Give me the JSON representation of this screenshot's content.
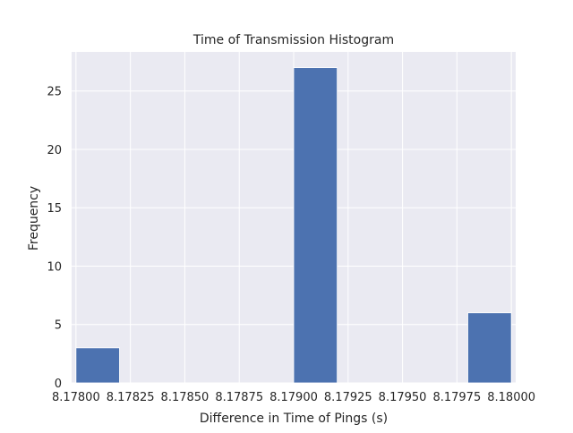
{
  "chart_data": {
    "type": "bar",
    "title": "Time of Transmission Histogram",
    "xlabel": "Difference in Time of Pings (s)",
    "ylabel": "Frequency",
    "xlim": [
      8.17798,
      8.18002
    ],
    "ylim": [
      0,
      28.35
    ],
    "xticks": [
      8.178,
      8.17825,
      8.1785,
      8.17875,
      8.179,
      8.17925,
      8.1795,
      8.17975,
      8.18
    ],
    "xtick_labels": [
      "8.17800",
      "8.17825",
      "8.17850",
      "8.17875",
      "8.17900",
      "8.17925",
      "8.17950",
      "8.17975",
      "8.18000"
    ],
    "yticks": [
      0,
      5,
      10,
      15,
      20,
      25
    ],
    "ytick_labels": [
      "0",
      "5",
      "10",
      "15",
      "20",
      "25"
    ],
    "bins": [
      {
        "start": 8.178,
        "end": 8.1782,
        "count": 3
      },
      {
        "start": 8.1782,
        "end": 8.1784,
        "count": 0
      },
      {
        "start": 8.1784,
        "end": 8.1786,
        "count": 0
      },
      {
        "start": 8.1786,
        "end": 8.1788,
        "count": 0
      },
      {
        "start": 8.1788,
        "end": 8.179,
        "count": 0
      },
      {
        "start": 8.179,
        "end": 8.1792,
        "count": 27
      },
      {
        "start": 8.1792,
        "end": 8.1794,
        "count": 0
      },
      {
        "start": 8.1794,
        "end": 8.1796,
        "count": 0
      },
      {
        "start": 8.1796,
        "end": 8.1798,
        "count": 0
      },
      {
        "start": 8.1798,
        "end": 8.18,
        "count": 6
      }
    ],
    "grid": true,
    "colors": {
      "bar": "#4c72b0",
      "background": "#eaeaf2",
      "grid": "#ffffff",
      "text": "#262626"
    }
  }
}
